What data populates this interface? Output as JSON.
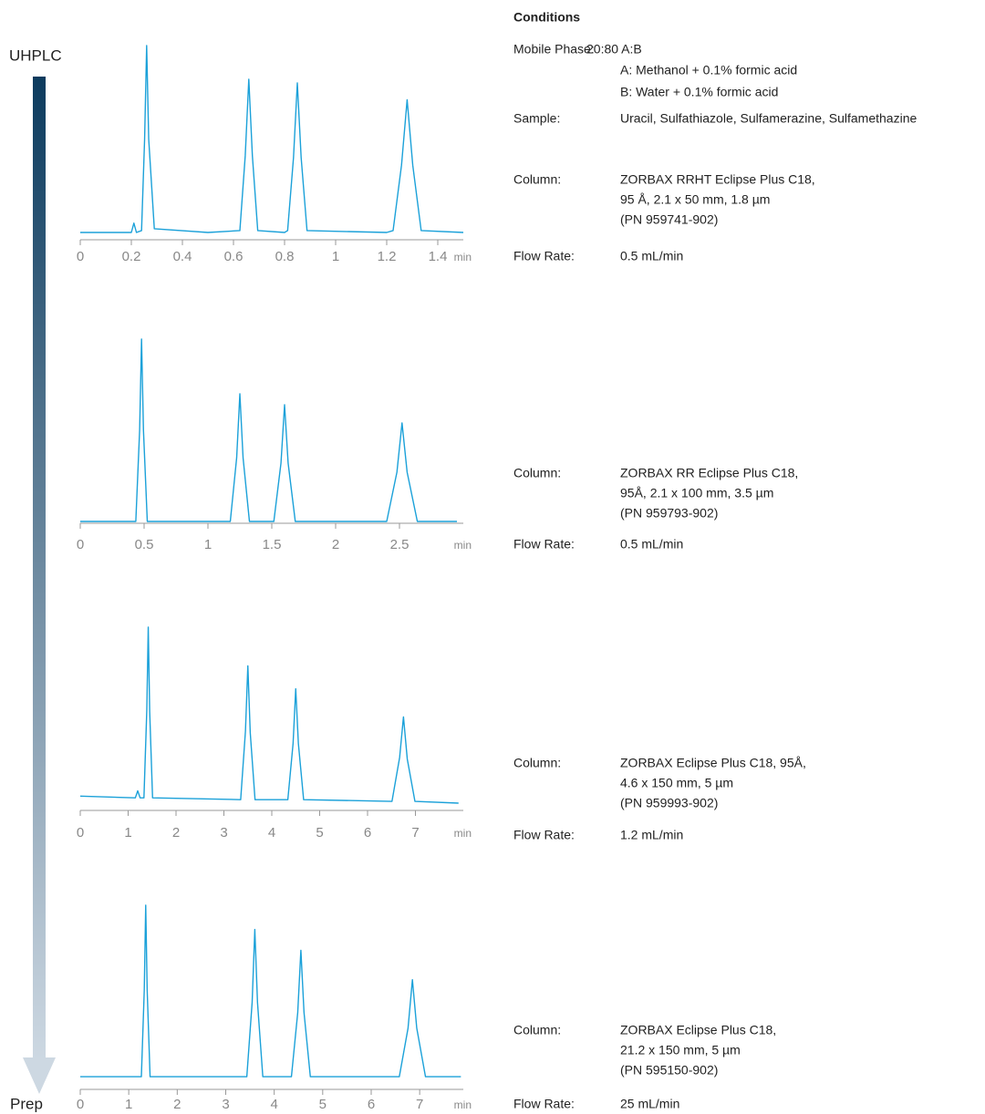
{
  "chart_data": [
    {
      "type": "line",
      "color": "#1ba1d9",
      "x_unit": "min",
      "x": [
        0,
        0.2,
        0.21,
        0.22,
        0.24,
        0.252,
        0.26,
        0.268,
        0.29,
        0.5,
        0.625,
        0.646,
        0.66,
        0.674,
        0.695,
        0.8,
        0.812,
        0.835,
        0.85,
        0.865,
        0.888,
        1.2,
        1.225,
        1.258,
        1.28,
        1.302,
        1.335,
        1.5
      ],
      "values": [
        0,
        0,
        5,
        0,
        1,
        50,
        100,
        50,
        2,
        0,
        1,
        41,
        82,
        41,
        1,
        0,
        1,
        40,
        80,
        40,
        1,
        0,
        1,
        36,
        71,
        36,
        1,
        0
      ],
      "xlim": [
        0,
        1.5
      ],
      "xticks": [
        0,
        0.2,
        0.4,
        0.6,
        0.8,
        1,
        1.2,
        1.4
      ],
      "ylim": [
        0,
        100
      ]
    },
    {
      "type": "line",
      "color": "#1ba1d9",
      "x_unit": "min",
      "x": [
        0,
        0.435,
        0.465,
        0.48,
        0.495,
        0.525,
        1.175,
        1.225,
        1.25,
        1.275,
        1.325,
        1.516,
        1.572,
        1.6,
        1.628,
        1.684,
        2.4,
        2.48,
        2.52,
        2.56,
        2.64,
        2.95
      ],
      "values": [
        0,
        0,
        50,
        100,
        50,
        0,
        0,
        35,
        70,
        35,
        0,
        0,
        32,
        64,
        32,
        0,
        0,
        27,
        54,
        27,
        0,
        0
      ],
      "xlim": [
        0,
        3
      ],
      "xticks": [
        0,
        0.5,
        1,
        1.5,
        2,
        2.5
      ],
      "ylim": [
        0,
        100
      ]
    },
    {
      "type": "line",
      "color": "#1ba1d9",
      "x_unit": "min",
      "x": [
        0,
        1.15,
        1.2,
        1.25,
        1.33,
        1.39,
        1.42,
        1.45,
        1.51,
        3.35,
        3.45,
        3.5,
        3.55,
        3.65,
        4.335,
        4.445,
        4.5,
        4.555,
        4.665,
        6.51,
        6.67,
        6.75,
        6.83,
        6.99,
        7.9
      ],
      "values": [
        4,
        3,
        7,
        3,
        3,
        53,
        100,
        52,
        3,
        2,
        41,
        78,
        40,
        2,
        2,
        34,
        65,
        34,
        2,
        1,
        26,
        49,
        25,
        1,
        0
      ],
      "xlim": [
        0,
        8
      ],
      "xticks": [
        0,
        1,
        2,
        3,
        4,
        5,
        6,
        7
      ],
      "ylim": [
        0,
        100
      ]
    },
    {
      "type": "line",
      "color": "#1ba1d9",
      "x_unit": "min",
      "x": [
        0,
        1.26,
        1.32,
        1.35,
        1.38,
        1.44,
        3.435,
        3.545,
        3.6,
        3.655,
        3.765,
        4.355,
        4.485,
        4.55,
        4.615,
        4.745,
        6.58,
        6.76,
        6.85,
        6.94,
        7.12,
        7.85
      ],
      "values": [
        1,
        1,
        51,
        100,
        51,
        1,
        1,
        44,
        86,
        44,
        1,
        1,
        38,
        74,
        38,
        1,
        1,
        29,
        57,
        29,
        1,
        1
      ],
      "xlim": [
        0,
        7.9
      ],
      "xticks": [
        0,
        1,
        2,
        3,
        4,
        5,
        6,
        7
      ],
      "ylim": [
        0,
        100
      ]
    }
  ],
  "scale": {
    "top": "UHPLC",
    "bottom": "Prep"
  },
  "conditions": {
    "title": "Conditions",
    "mobile_phase": {
      "label": "Mobile Phase:",
      "value": "20:80 A:B",
      "lines": [
        "A: Methanol + 0.1% formic acid",
        "B: Water + 0.1% formic acid"
      ]
    },
    "sample": {
      "label": "Sample:",
      "value": "Uracil, Sulfathiazole, Sulfamerazine, Sulfamethazine"
    },
    "columns": [
      {
        "label": "Column:",
        "lines": [
          "ZORBAX RRHT Eclipse Plus C18,",
          "95 Å, 2.1 x 50 mm, 1.8 µm",
          "(PN 959741-902)"
        ],
        "flow_label": "Flow Rate:",
        "flow": "0.5 mL/min"
      },
      {
        "label": "Column:",
        "lines": [
          "ZORBAX RR Eclipse Plus C18,",
          "95Å, 2.1 x 100 mm, 3.5 µm",
          "(PN 959793-902)"
        ],
        "flow_label": "Flow Rate:",
        "flow": "0.5 mL/min"
      },
      {
        "label": "Column:",
        "lines": [
          "ZORBAX Eclipse Plus C18, 95Å,",
          "4.6 x 150 mm, 5 µm",
          "(PN 959993-902)"
        ],
        "flow_label": "Flow Rate:",
        "flow": "1.2 mL/min"
      },
      {
        "label": "Column:",
        "lines": [
          "ZORBAX Eclipse Plus C18,",
          "21.2 x 150 mm, 5 µm",
          "(PN 595150-902)"
        ],
        "flow_label": "Flow Rate:",
        "flow": "25 mL/min"
      }
    ]
  }
}
